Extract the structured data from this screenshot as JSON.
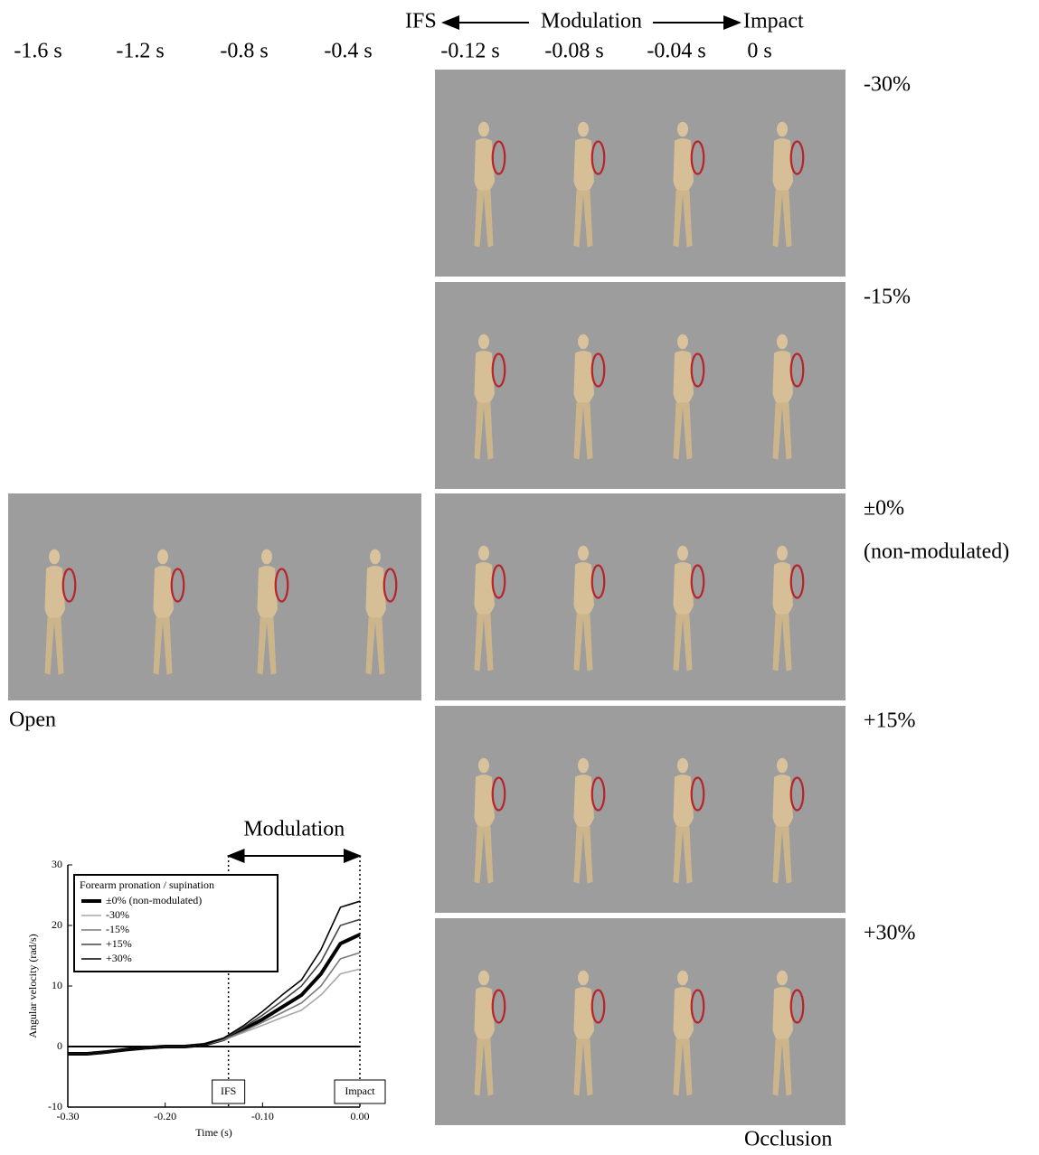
{
  "header": {
    "ifs": "IFS",
    "modulation": "Modulation",
    "impact": "Impact"
  },
  "time_labels": [
    "-1.6 s",
    "-1.2 s",
    "-0.8 s",
    "-0.4 s",
    "-0.12 s",
    "-0.08 s",
    "-0.04 s",
    "0 s"
  ],
  "row_labels": [
    "-30%",
    "-15%",
    "±0%",
    "+15%",
    "+30%"
  ],
  "non_modulated": "(non-modulated)",
  "open_label": "Open",
  "occlusion_label": "Occlusion",
  "chart_data": {
    "type": "line",
    "x_label": "Time (s)",
    "y_label": "Angular velocity (rad/s)",
    "legend_title": "Forearm  pronation / supination",
    "modulation_label": "Modulation",
    "xlim": [
      -0.3,
      0
    ],
    "ylim": [
      -10,
      30
    ],
    "xticks": [
      {
        "value": -0.3,
        "label": "-0.30"
      },
      {
        "value": -0.2,
        "label": "-0.20"
      },
      {
        "value": -0.1,
        "label": "-0.10"
      },
      {
        "value": 0,
        "label": "0.00"
      }
    ],
    "yticks": [
      -10,
      0,
      10,
      20,
      30
    ],
    "events": [
      {
        "value": -0.135,
        "label": "IFS"
      },
      {
        "value": 0,
        "label": "Impact"
      }
    ],
    "x": [
      -0.3,
      -0.28,
      -0.26,
      -0.24,
      -0.22,
      -0.2,
      -0.18,
      -0.16,
      -0.14,
      -0.12,
      -0.1,
      -0.08,
      -0.06,
      -0.04,
      -0.02,
      0
    ],
    "series": [
      {
        "name": "±0% (non-modulated)",
        "color": "#000000",
        "width": 4,
        "values": [
          -1.2,
          -1.2,
          -0.9,
          -0.5,
          -0.2,
          0,
          0,
          0.3,
          1.2,
          2.8,
          4.5,
          6.5,
          8.5,
          12,
          17,
          18.5
        ]
      },
      {
        "name": "-30%",
        "color": "#a8a8a8",
        "width": 1.6,
        "values": [
          -1.2,
          -1.2,
          -0.9,
          -0.5,
          -0.2,
          0,
          0,
          0.3,
          1.1,
          2.3,
          3.5,
          4.8,
          6,
          8.5,
          12,
          12.8
        ]
      },
      {
        "name": "-15%",
        "color": "#7a7a7a",
        "width": 1.6,
        "values": [
          -1.2,
          -1.2,
          -0.9,
          -0.5,
          -0.2,
          0,
          0,
          0.3,
          1.1,
          2.5,
          4,
          5.6,
          7.2,
          10,
          14.5,
          15.5
        ]
      },
      {
        "name": "+15%",
        "color": "#444444",
        "width": 1.6,
        "values": [
          -1.2,
          -1.2,
          -0.9,
          -0.5,
          -0.2,
          0,
          0,
          0.3,
          1.3,
          3.1,
          5.2,
          7.5,
          10,
          14,
          20,
          21
        ]
      },
      {
        "name": "+30%",
        "color": "#000000",
        "width": 1.6,
        "values": [
          -1.2,
          -1.2,
          -0.9,
          -0.5,
          -0.2,
          0,
          0,
          0.3,
          1.4,
          3.4,
          5.8,
          8.5,
          11,
          16,
          23,
          24
        ]
      }
    ]
  }
}
